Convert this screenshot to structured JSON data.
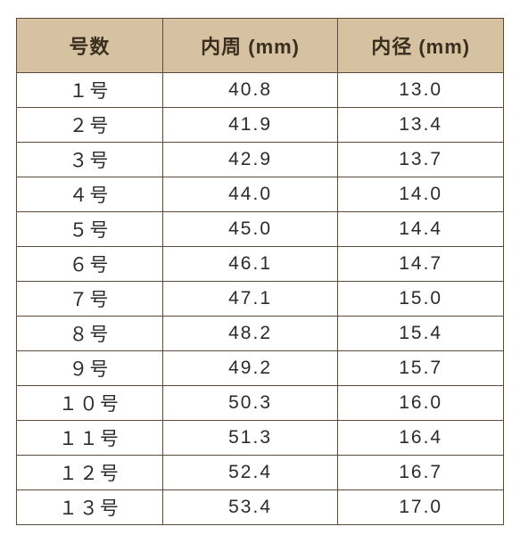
{
  "table": {
    "type": "table",
    "header_bg": "#d6c2a0",
    "border_color": "#5c4a3a",
    "header_text_color": "#3a2e20",
    "cell_text_color": "#2b2b2b",
    "cell_bg": "#ffffff",
    "header_fontsize": 22,
    "cell_fontsize": 21,
    "header_row_height": 58,
    "body_row_height": 36,
    "col_widths_pct": [
      30,
      36,
      34
    ],
    "columns": [
      "号数",
      "内周 (mm)",
      "内径 (mm)"
    ],
    "rows": [
      [
        "１号",
        "40.8",
        "13.0"
      ],
      [
        "２号",
        "41.9",
        "13.4"
      ],
      [
        "３号",
        "42.9",
        "13.7"
      ],
      [
        "４号",
        "44.0",
        "14.0"
      ],
      [
        "５号",
        "45.0",
        "14.4"
      ],
      [
        "６号",
        "46.1",
        "14.7"
      ],
      [
        "７号",
        "47.1",
        "15.0"
      ],
      [
        "８号",
        "48.2",
        "15.4"
      ],
      [
        "９号",
        "49.2",
        "15.7"
      ],
      [
        "１０号",
        "50.3",
        "16.0"
      ],
      [
        "１１号",
        "51.3",
        "16.4"
      ],
      [
        "１２号",
        "52.4",
        "16.7"
      ],
      [
        "１３号",
        "53.4",
        "17.0"
      ]
    ]
  }
}
